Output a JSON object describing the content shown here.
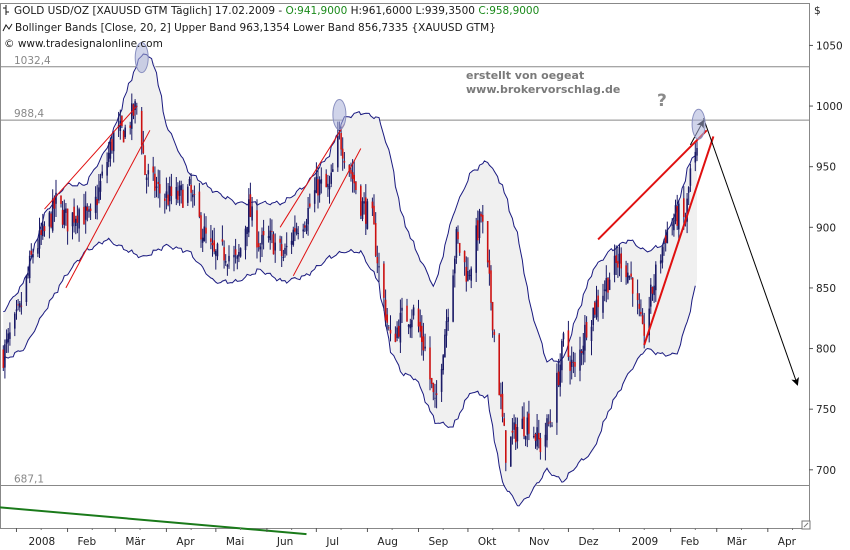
{
  "header": {
    "instrument": "GOLD USD/OZ [XAUUSD GTM  Täglich] 17.02.2009 -",
    "open": "O:941,9000",
    "high": "H:961,6000",
    "low": "L:939,3500",
    "close": "C:958,9000",
    "indicator": "Bollinger Bands [Close, 20, 2]  Upper Band 963,1354  Lower Band 856,7335  {XAUUSD GTM}",
    "copyright": "© www.tradesignalonline.com"
  },
  "annotations": {
    "line1": "erstellt von oegeat",
    "line2": "www.brokervorschlag.de",
    "question": "?"
  },
  "colors": {
    "candle_up": "#1a1a66",
    "candle_down": "#cc1111",
    "band": "#1a1a80",
    "band_fill": "#f0f0f0",
    "trend_red": "#e01010",
    "green_line": "#1a7a1a",
    "level_line": "#888888",
    "ellipse": "#aab0d8"
  },
  "chart_data": {
    "type": "candlestick",
    "y_unit": "$",
    "ylim": [
      652,
      1085
    ],
    "y_ticks": [
      700,
      750,
      800,
      850,
      900,
      950,
      1000,
      1050
    ],
    "y_tick_labels": [
      "700",
      "750",
      "800",
      "850",
      "900",
      "950",
      "1000",
      "1050"
    ],
    "x_labels": [
      "2008",
      "Feb",
      "Mär",
      "Apr",
      "Mai",
      "Jun",
      "Jul",
      "Aug",
      "Sep",
      "Okt",
      "Nov",
      "Dez",
      "2009",
      "Feb",
      "Mär",
      "Apr"
    ],
    "x_dates": [
      "2008-01-01",
      "2008-02-01",
      "2008-03-01",
      "2008-04-01",
      "2008-05-01",
      "2008-06-01",
      "2008-07-01",
      "2008-08-01",
      "2008-09-01",
      "2008-10-01",
      "2008-11-01",
      "2008-12-01",
      "2009-01-01",
      "2009-02-01",
      "2009-03-01",
      "2009-04-01"
    ],
    "xlim": [
      "2007-12-22",
      "2009-04-26"
    ],
    "horizontal_levels": [
      {
        "value": 1032.4,
        "label": "1032,4"
      },
      {
        "value": 988.4,
        "label": "988,4"
      },
      {
        "value": 687.1,
        "label": "687,1"
      }
    ],
    "close_path": [
      [
        "2007-12-24",
        795
      ],
      [
        "2008-01-03",
        830
      ],
      [
        "2008-01-11",
        880
      ],
      [
        "2008-01-18",
        895
      ],
      [
        "2008-01-25",
        920
      ],
      [
        "2008-02-01",
        905
      ],
      [
        "2008-02-08",
        915
      ],
      [
        "2008-02-15",
        905
      ],
      [
        "2008-02-22",
        940
      ],
      [
        "2008-02-29",
        975
      ],
      [
        "2008-03-07",
        980
      ],
      [
        "2008-03-14",
        1000
      ],
      [
        "2008-03-17",
        975
      ],
      [
        "2008-03-19",
        945
      ],
      [
        "2008-03-24",
        935
      ],
      [
        "2008-03-31",
        925
      ],
      [
        "2008-04-08",
        925
      ],
      [
        "2008-04-15",
        930
      ],
      [
        "2008-04-22",
        900
      ],
      [
        "2008-04-30",
        875
      ],
      [
        "2008-05-07",
        880
      ],
      [
        "2008-05-14",
        870
      ],
      [
        "2008-05-21",
        915
      ],
      [
        "2008-05-28",
        885
      ],
      [
        "2008-06-04",
        890
      ],
      [
        "2008-06-11",
        875
      ],
      [
        "2008-06-18",
        900
      ],
      [
        "2008-06-25",
        910
      ],
      [
        "2008-07-02",
        935
      ],
      [
        "2008-07-09",
        930
      ],
      [
        "2008-07-15",
        975
      ],
      [
        "2008-07-21",
        950
      ],
      [
        "2008-07-28",
        920
      ],
      [
        "2008-08-04",
        905
      ],
      [
        "2008-08-08",
        865
      ],
      [
        "2008-08-15",
        805
      ],
      [
        "2008-08-22",
        825
      ],
      [
        "2008-08-29",
        830
      ],
      [
        "2008-09-05",
        800
      ],
      [
        "2008-09-11",
        750
      ],
      [
        "2008-09-18",
        825
      ],
      [
        "2008-09-24",
        890
      ],
      [
        "2008-10-01",
        860
      ],
      [
        "2008-10-09",
        910
      ],
      [
        "2008-10-15",
        840
      ],
      [
        "2008-10-22",
        740
      ],
      [
        "2008-10-24",
        715
      ],
      [
        "2008-10-31",
        735
      ],
      [
        "2008-11-07",
        740
      ],
      [
        "2008-11-14",
        720
      ],
      [
        "2008-11-21",
        745
      ],
      [
        "2008-11-28",
        805
      ],
      [
        "2008-12-05",
        780
      ],
      [
        "2008-12-12",
        820
      ],
      [
        "2008-12-19",
        840
      ],
      [
        "2008-12-26",
        860
      ],
      [
        "2009-01-02",
        875
      ],
      [
        "2009-01-09",
        855
      ],
      [
        "2009-01-15",
        810
      ],
      [
        "2009-01-22",
        855
      ],
      [
        "2009-01-29",
        895
      ],
      [
        "2009-02-05",
        910
      ],
      [
        "2009-02-10",
        905
      ],
      [
        "2009-02-13",
        945
      ],
      [
        "2009-02-17",
        958.9
      ]
    ],
    "upper_band": [
      [
        "2007-12-24",
        830
      ],
      [
        "2008-01-06",
        855
      ],
      [
        "2008-01-18",
        910
      ],
      [
        "2008-01-31",
        935
      ],
      [
        "2008-02-12",
        935
      ],
      [
        "2008-02-25",
        965
      ],
      [
        "2008-03-03",
        990
      ],
      [
        "2008-03-10",
        1020
      ],
      [
        "2008-03-18",
        1045
      ],
      [
        "2008-03-25",
        1035
      ],
      [
        "2008-04-01",
        985
      ],
      [
        "2008-04-15",
        945
      ],
      [
        "2008-04-30",
        930
      ],
      [
        "2008-05-14",
        920
      ],
      [
        "2008-05-28",
        920
      ],
      [
        "2008-06-11",
        920
      ],
      [
        "2008-06-25",
        935
      ],
      [
        "2008-07-09",
        960
      ],
      [
        "2008-07-18",
        990
      ],
      [
        "2008-07-28",
        995
      ],
      [
        "2008-08-08",
        990
      ],
      [
        "2008-08-15",
        960
      ],
      [
        "2008-08-22",
        910
      ],
      [
        "2008-08-31",
        880
      ],
      [
        "2008-09-11",
        850
      ],
      [
        "2008-09-22",
        910
      ],
      [
        "2008-10-03",
        945
      ],
      [
        "2008-10-13",
        955
      ],
      [
        "2008-10-22",
        935
      ],
      [
        "2008-11-01",
        890
      ],
      [
        "2008-11-08",
        835
      ],
      [
        "2008-11-18",
        790
      ],
      [
        "2008-11-28",
        790
      ],
      [
        "2008-12-07",
        830
      ],
      [
        "2008-12-16",
        865
      ],
      [
        "2008-12-26",
        880
      ],
      [
        "2009-01-07",
        890
      ],
      [
        "2009-01-17",
        880
      ],
      [
        "2009-01-27",
        885
      ],
      [
        "2009-02-05",
        915
      ],
      [
        "2009-02-12",
        950
      ],
      [
        "2009-02-17",
        963.1
      ]
    ],
    "lower_band": [
      [
        "2007-12-24",
        790
      ],
      [
        "2008-01-06",
        800
      ],
      [
        "2008-01-18",
        830
      ],
      [
        "2008-01-31",
        860
      ],
      [
        "2008-02-12",
        880
      ],
      [
        "2008-02-25",
        890
      ],
      [
        "2008-03-03",
        885
      ],
      [
        "2008-03-10",
        880
      ],
      [
        "2008-03-18",
        875
      ],
      [
        "2008-03-25",
        880
      ],
      [
        "2008-04-01",
        885
      ],
      [
        "2008-04-15",
        880
      ],
      [
        "2008-04-30",
        855
      ],
      [
        "2008-05-14",
        855
      ],
      [
        "2008-05-28",
        865
      ],
      [
        "2008-06-11",
        855
      ],
      [
        "2008-06-25",
        860
      ],
      [
        "2008-07-09",
        875
      ],
      [
        "2008-07-18",
        880
      ],
      [
        "2008-07-28",
        880
      ],
      [
        "2008-08-08",
        855
      ],
      [
        "2008-08-15",
        800
      ],
      [
        "2008-08-22",
        780
      ],
      [
        "2008-08-31",
        775
      ],
      [
        "2008-09-11",
        740
      ],
      [
        "2008-09-22",
        735
      ],
      [
        "2008-10-03",
        765
      ],
      [
        "2008-10-13",
        760
      ],
      [
        "2008-10-22",
        690
      ],
      [
        "2008-11-01",
        670
      ],
      [
        "2008-11-08",
        680
      ],
      [
        "2008-11-18",
        700
      ],
      [
        "2008-11-28",
        690
      ],
      [
        "2008-12-07",
        705
      ],
      [
        "2008-12-16",
        715
      ],
      [
        "2008-12-26",
        750
      ],
      [
        "2009-01-07",
        780
      ],
      [
        "2009-01-17",
        800
      ],
      [
        "2009-01-27",
        795
      ],
      [
        "2009-02-05",
        795
      ],
      [
        "2009-02-12",
        825
      ],
      [
        "2009-02-17",
        856.7
      ]
    ],
    "trend_lines": [
      {
        "color": "red",
        "width": 1,
        "from": [
          "2008-01-18",
          915
        ],
        "to": [
          "2008-03-14",
          1000
        ]
      },
      {
        "color": "red",
        "width": 1,
        "from": [
          "2008-01-31",
          850
        ],
        "to": [
          "2008-03-22",
          980
        ]
      },
      {
        "color": "red",
        "width": 1,
        "from": [
          "2008-06-09",
          900
        ],
        "to": [
          "2008-07-18",
          985
        ]
      },
      {
        "color": "red",
        "width": 1,
        "from": [
          "2008-06-17",
          860
        ],
        "to": [
          "2008-07-28",
          965
        ]
      },
      {
        "color": "red",
        "width": 2,
        "from": [
          "2008-12-19",
          890
        ],
        "to": [
          "2009-02-23",
          980
        ]
      },
      {
        "color": "red",
        "width": 2,
        "from": [
          "2009-01-16",
          803
        ],
        "to": [
          "2009-02-27",
          975
        ]
      },
      {
        "color": "black",
        "width": 1,
        "from": [
          "2009-02-21",
          990
        ],
        "to": [
          "2009-04-19",
          770
        ],
        "arrow": true
      },
      {
        "color": "black",
        "width": 1,
        "from": [
          "2009-02-13",
          968
        ],
        "to": [
          "2009-02-21",
          988
        ],
        "arrow": true
      },
      {
        "color": "green",
        "width": 2,
        "from": [
          "2007-12-22",
          669
        ],
        "to": [
          "2008-06-25",
          647
        ]
      }
    ],
    "highlight_ellipses": [
      {
        "center": [
          "2008-03-17",
          1040
        ]
      },
      {
        "center": [
          "2008-07-15",
          993
        ]
      },
      {
        "center": [
          "2009-02-18",
          985
        ]
      }
    ]
  }
}
